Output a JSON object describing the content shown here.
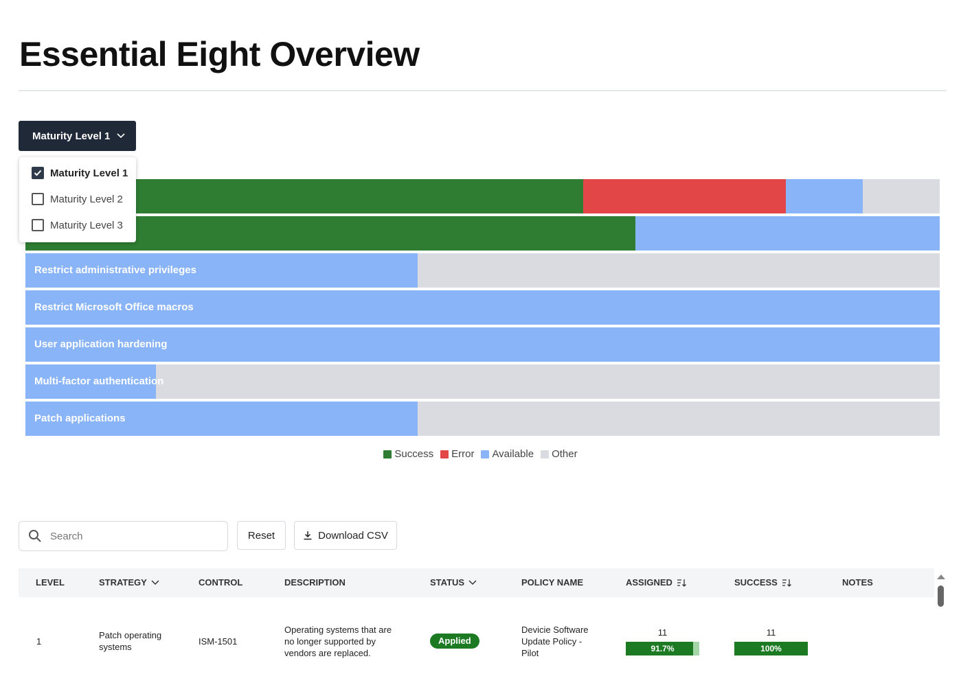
{
  "page": {
    "title": "Essential Eight Overview"
  },
  "level_selector": {
    "selected_label": "Maturity Level 1",
    "options": [
      {
        "label": "Maturity Level 1",
        "checked": true
      },
      {
        "label": "Maturity Level 2",
        "checked": false
      },
      {
        "label": "Maturity Level 3",
        "checked": false
      }
    ]
  },
  "chart_data": {
    "type": "bar",
    "orientation": "horizontal-stacked-percent",
    "categories": [
      "Patch operating systems",
      "",
      "Restrict administrative privileges",
      "Restrict Microsoft Office macros",
      "User application hardening",
      "Multi-factor authentication",
      "Patch applications"
    ],
    "visible_labels": [
      "ems",
      "",
      "Restrict administrative privileges",
      "Restrict Microsoft Office macros",
      "User application hardening",
      "Multi-factor authentication",
      "Patch applications"
    ],
    "series": [
      {
        "name": "Success",
        "color": "#2e7d32",
        "values": [
          61.0,
          66.7,
          0,
          0,
          0,
          0,
          0
        ]
      },
      {
        "name": "Error",
        "color": "#e34646",
        "values": [
          22.2,
          0,
          0,
          0,
          0,
          0,
          0
        ]
      },
      {
        "name": "Available",
        "color": "#8ab4f8",
        "values": [
          8.4,
          33.3,
          42.9,
          100,
          100,
          14.3,
          42.9
        ]
      },
      {
        "name": "Other",
        "color": "#d9dbe0",
        "values": [
          8.4,
          0,
          57.1,
          0,
          0,
          85.7,
          57.1
        ]
      }
    ],
    "legend": [
      "Success",
      "Error",
      "Available",
      "Other"
    ],
    "legend_position": "bottom-center"
  },
  "toolbar": {
    "search_placeholder": "Search",
    "reset_label": "Reset",
    "download_label": "Download CSV"
  },
  "table": {
    "columns": {
      "level": "LEVEL",
      "strategy": "STRATEGY",
      "control": "CONTROL",
      "description": "DESCRIPTION",
      "status": "STATUS",
      "policy_name": "POLICY NAME",
      "assigned": "ASSIGNED",
      "success": "SUCCESS",
      "notes": "NOTES"
    },
    "rows": [
      {
        "level": "1",
        "strategy": "Patch operating systems",
        "control": "ISM-1501",
        "description": "Operating systems that are no longer supported by vendors are replaced.",
        "status": "Applied",
        "policy_name": "Devicie Software Update Policy - Pilot",
        "assigned_count": "11",
        "assigned_pct": "91.7%",
        "assigned_fill": 0.917,
        "success_count": "11",
        "success_pct": "100%",
        "success_fill": 1.0,
        "notes": ""
      }
    ]
  },
  "icons": {
    "chevron": "chevron-down-icon",
    "check": "check-icon",
    "search": "search-icon",
    "download": "download-icon",
    "sort": "sort-icon"
  }
}
